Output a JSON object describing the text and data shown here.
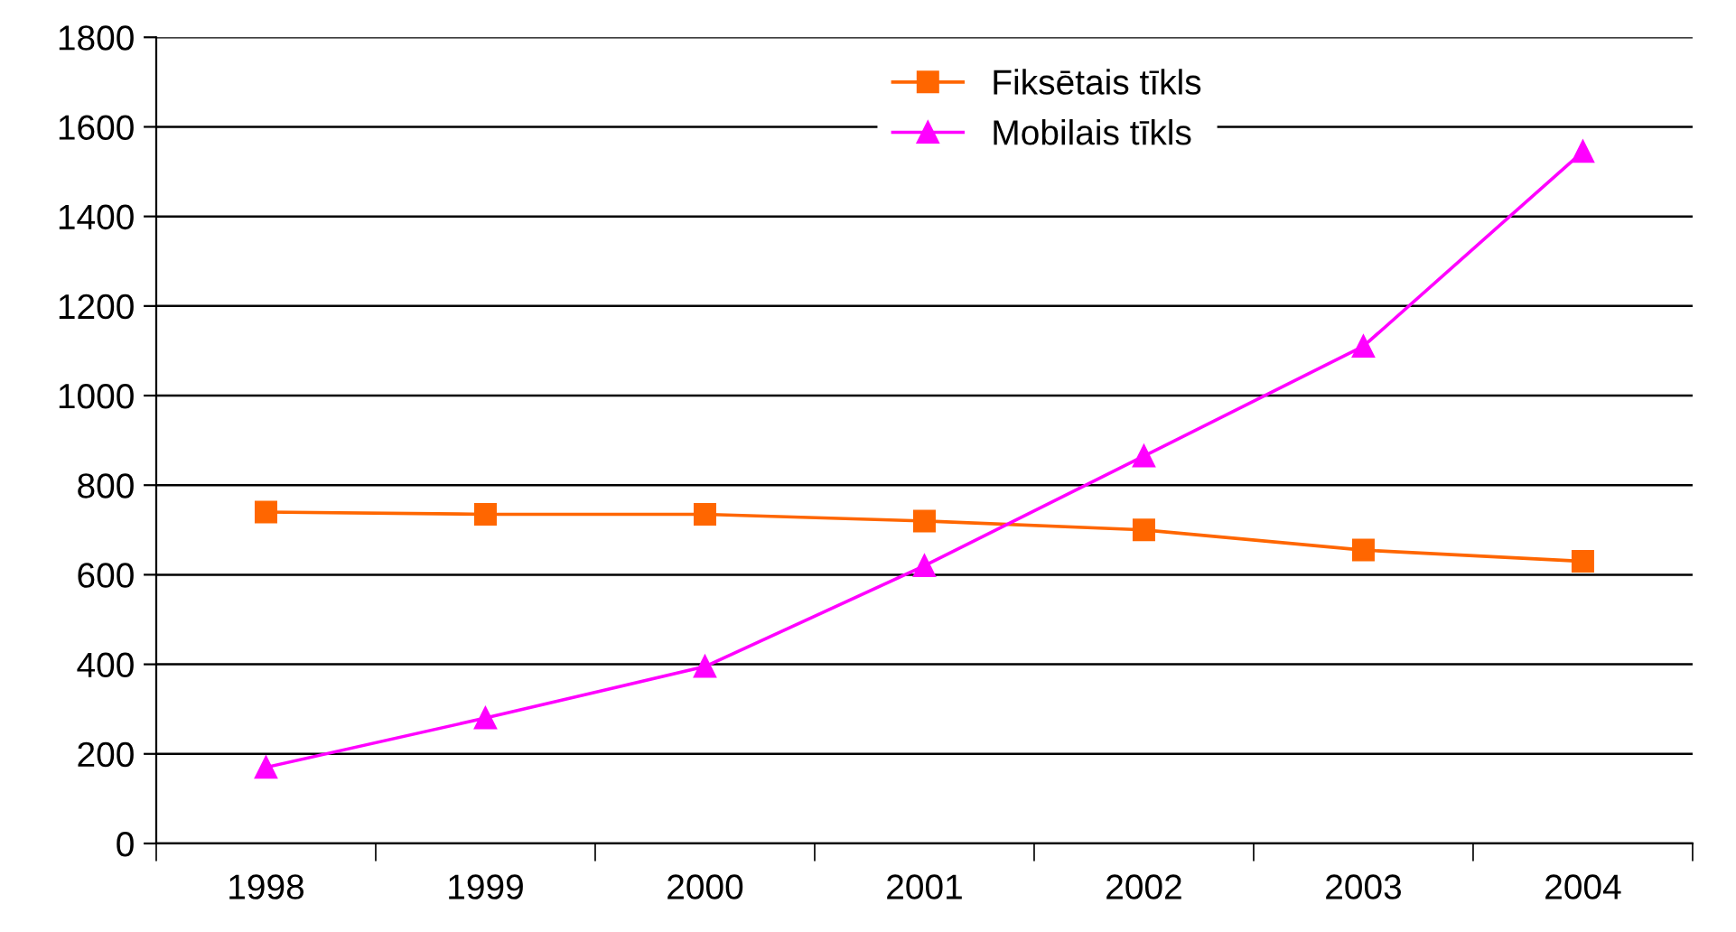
{
  "chart_data": {
    "type": "line",
    "categories": [
      "1998",
      "1999",
      "2000",
      "2001",
      "2002",
      "2003",
      "2004"
    ],
    "series": [
      {
        "name": "Fiksētais tīkls",
        "color": "#ff6600",
        "marker": "square",
        "values": [
          740,
          735,
          735,
          720,
          700,
          655,
          630
        ]
      },
      {
        "name": "Mobilais tīkls",
        "color": "#ff00ff",
        "marker": "triangle",
        "values": [
          170,
          280,
          395,
          620,
          865,
          1110,
          1545
        ]
      }
    ],
    "ylim": [
      0,
      1800
    ],
    "yticks": [
      0,
      200,
      400,
      600,
      800,
      1000,
      1200,
      1400,
      1600,
      1800
    ],
    "grid": "y",
    "legend": "top",
    "line_style": "solid"
  }
}
